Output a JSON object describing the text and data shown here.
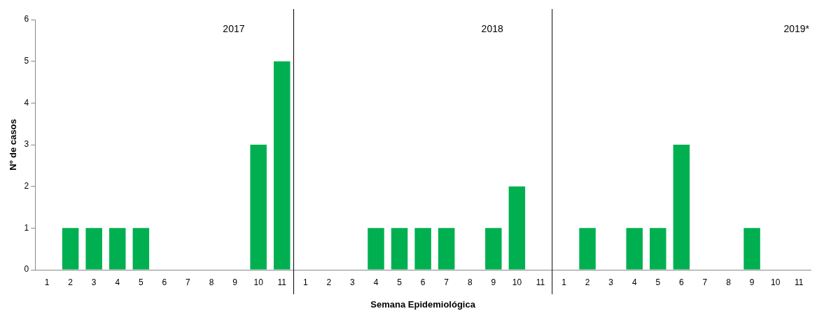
{
  "chart_data": {
    "type": "bar",
    "xlabel": "Semana Epidemiológica",
    "ylabel": "Nº de casos",
    "categories": [
      "1",
      "2",
      "3",
      "4",
      "5",
      "6",
      "7",
      "8",
      "9",
      "10",
      "11",
      "1",
      "2",
      "3",
      "4",
      "5",
      "6",
      "7",
      "8",
      "9",
      "10",
      "11",
      "1",
      "2",
      "3",
      "4",
      "5",
      "6",
      "7",
      "8",
      "9",
      "10",
      "11"
    ],
    "values": [
      0,
      1,
      1,
      1,
      1,
      0,
      0,
      0,
      0,
      3,
      5,
      0,
      0,
      0,
      1,
      1,
      1,
      1,
      0,
      1,
      2,
      0,
      0,
      1,
      0,
      1,
      1,
      3,
      0,
      0,
      1,
      0,
      0
    ],
    "color": "#00b050",
    "ylim": [
      0,
      6
    ],
    "yticks": [
      0,
      1,
      2,
      3,
      4,
      5,
      6
    ],
    "grid": false,
    "legend": false,
    "annotations": [
      "2017",
      "2018",
      "2019*"
    ]
  }
}
